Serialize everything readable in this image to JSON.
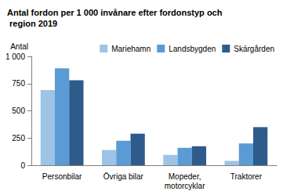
{
  "chart_data": {
    "type": "bar",
    "title": "Antal fordon per 1 000 invånare efter fordonstyp och region 2019",
    "ylabel": "Antal",
    "categories": [
      "Personbilar",
      "Övriga bilar",
      "Mopeder, motorcyklar",
      "Traktorer"
    ],
    "series": [
      {
        "name": "Mariehamn",
        "color": "#9dc3e6",
        "values": [
          690,
          140,
          95,
          40
        ]
      },
      {
        "name": "Landsbygden",
        "color": "#5b9bd5",
        "values": [
          890,
          225,
          160,
          200
        ]
      },
      {
        "name": "Skärgården",
        "color": "#2e5b8c",
        "values": [
          780,
          290,
          175,
          350
        ]
      }
    ],
    "ylim": [
      0,
      1000
    ],
    "yticks": [
      0,
      250,
      500,
      750,
      {
        "value": 1000,
        "label": "1 000"
      }
    ],
    "grid": false,
    "legend": "top right"
  }
}
